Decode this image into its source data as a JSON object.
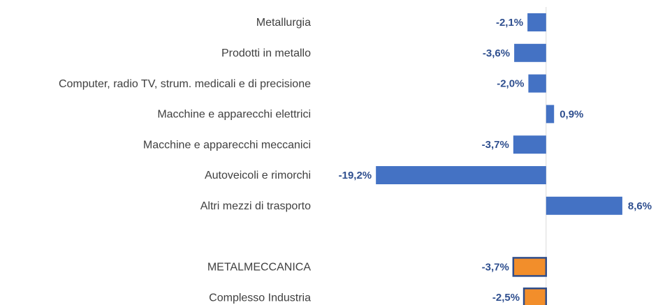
{
  "chart_data": {
    "type": "barh",
    "categories": [
      "Metallurgia",
      "Prodotti in metallo",
      "Computer, radio TV, strum. medicali e di precisione",
      "Macchine e apparecchi elettrici",
      "Macchine e apparecchi meccanici",
      "Autoveicoli e rimorchi",
      "Altri mezzi di trasporto",
      null,
      "METALMECCANICA",
      "Complesso Industria"
    ],
    "values": [
      -2.1,
      -3.6,
      -2.0,
      0.9,
      -3.7,
      -19.2,
      8.6,
      null,
      -3.7,
      -2.5
    ],
    "value_labels": [
      "-2,1%",
      "-3,6%",
      "-2,0%",
      "0,9%",
      "-3,7%",
      "-19,2%",
      "8,6%",
      null,
      "-3,7%",
      "-2,5%"
    ],
    "colors": [
      "#4472c4",
      "#4472c4",
      "#4472c4",
      "#4472c4",
      "#4472c4",
      "#4472c4",
      "#4472c4",
      null,
      "#f28e2b",
      "#f28e2b"
    ],
    "edgecolors": [
      null,
      null,
      null,
      null,
      null,
      null,
      null,
      null,
      "#2f4d8a",
      "#2f4d8a"
    ],
    "xlim": [
      -20,
      9
    ]
  }
}
